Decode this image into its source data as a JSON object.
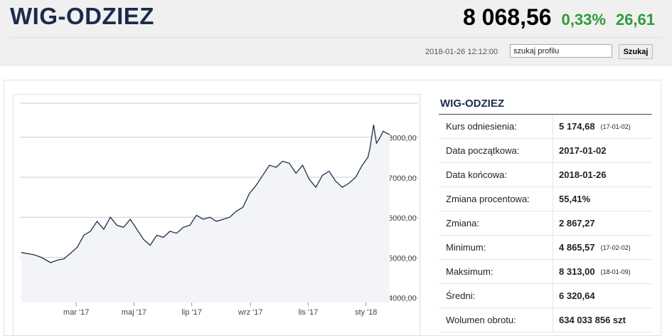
{
  "header": {
    "title": "WIG-ODZIEZ",
    "price": "8 068,56",
    "change_pct": "0,33%",
    "change": "26,61",
    "timestamp": "2018-01-26 12:12:00",
    "search_placeholder": "szukaj profilu",
    "search_button": "Szukaj"
  },
  "chart_data": {
    "type": "line",
    "color": "#1f2d4d",
    "grid": true,
    "xlim": [
      "2017-01-02",
      "2018-01-26"
    ],
    "ylim": [
      3870,
      8850
    ],
    "yticks": [
      {
        "value": 4000,
        "label": "4000,00"
      },
      {
        "value": 5000,
        "label": "5000,00"
      },
      {
        "value": 6000,
        "label": "6000,00"
      },
      {
        "value": 7000,
        "label": "7000,00"
      },
      {
        "value": 8000,
        "label": "8000,00"
      }
    ],
    "xticks": [
      {
        "value": "2017-03-01",
        "label": "mar '17"
      },
      {
        "value": "2017-05-01",
        "label": "maj '17"
      },
      {
        "value": "2017-07-01",
        "label": "lip '17"
      },
      {
        "value": "2017-09-01",
        "label": "wrz '17"
      },
      {
        "value": "2017-11-01",
        "label": "lis '17"
      },
      {
        "value": "2018-01-01",
        "label": "sty '18"
      }
    ],
    "x": [
      "2017-01-02",
      "2017-01-09",
      "2017-01-16",
      "2017-01-23",
      "2017-02-02",
      "2017-02-09",
      "2017-02-16",
      "2017-02-23",
      "2017-03-02",
      "2017-03-09",
      "2017-03-16",
      "2017-03-23",
      "2017-03-30",
      "2017-04-06",
      "2017-04-13",
      "2017-04-20",
      "2017-04-27",
      "2017-05-04",
      "2017-05-11",
      "2017-05-18",
      "2017-05-25",
      "2017-06-01",
      "2017-06-08",
      "2017-06-15",
      "2017-06-22",
      "2017-06-29",
      "2017-07-06",
      "2017-07-13",
      "2017-07-20",
      "2017-07-27",
      "2017-08-03",
      "2017-08-10",
      "2017-08-17",
      "2017-08-24",
      "2017-08-31",
      "2017-09-07",
      "2017-09-14",
      "2017-09-21",
      "2017-09-28",
      "2017-10-05",
      "2017-10-12",
      "2017-10-19",
      "2017-10-26",
      "2017-11-02",
      "2017-11-09",
      "2017-11-16",
      "2017-11-23",
      "2017-11-30",
      "2017-12-07",
      "2017-12-14",
      "2017-12-21",
      "2017-12-28",
      "2018-01-03",
      "2018-01-05",
      "2018-01-09",
      "2018-01-12",
      "2018-01-16",
      "2018-01-19",
      "2018-01-23",
      "2018-01-26"
    ],
    "values": [
      5120,
      5090,
      5060,
      5000,
      4866,
      4930,
      4960,
      5100,
      5250,
      5550,
      5650,
      5900,
      5700,
      6000,
      5800,
      5750,
      5950,
      5700,
      5450,
      5300,
      5550,
      5500,
      5650,
      5600,
      5750,
      5800,
      6050,
      5950,
      6000,
      5900,
      5950,
      6000,
      6150,
      6250,
      6600,
      6800,
      7050,
      7300,
      7250,
      7400,
      7350,
      7100,
      7300,
      6950,
      6750,
      7050,
      7150,
      6900,
      6750,
      6850,
      7000,
      7300,
      7500,
      7700,
      8313,
      7850,
      8000,
      8150,
      8100,
      8068.56
    ]
  },
  "table": {
    "title": "WIG-ODZIEZ",
    "rows": [
      {
        "label": "Kurs odniesienia:",
        "value": "5 174,68",
        "date": "(17-01-02)"
      },
      {
        "label": "Data początkowa:",
        "value": "2017-01-02"
      },
      {
        "label": "Data końcowa:",
        "value": "2018-01-26"
      },
      {
        "label": "Zmiana procentowa:",
        "value": "55,41%"
      },
      {
        "label": "Zmiana:",
        "value": "2 867,27"
      },
      {
        "label": "Minimum:",
        "value": "4 865,57",
        "date": "(17-02-02)"
      },
      {
        "label": "Maksimum:",
        "value": "8 313,00",
        "date": "(18-01-09)"
      },
      {
        "label": "Średni:",
        "value": "6 320,64"
      },
      {
        "label": "Wolumen obrotu:",
        "value": "634 033 856 szt"
      }
    ]
  }
}
